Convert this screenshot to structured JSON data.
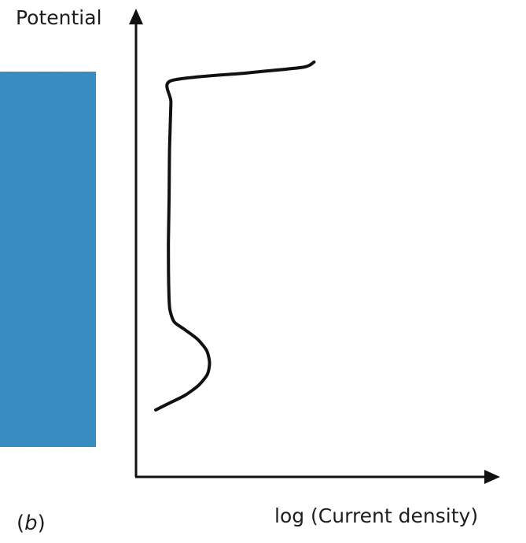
{
  "chart_data": {
    "type": "line",
    "title": "",
    "xlabel": "log (Current density)",
    "ylabel": "Potential",
    "grid": false,
    "legend": "none",
    "axis_ticks": "none",
    "colors": {
      "curve": "#111111",
      "axes": "#111111",
      "side_panel": "#3a90c4",
      "text": "#1e1e1e"
    },
    "xlim": [
      0,
      100
    ],
    "ylim": [
      0,
      100
    ],
    "series": [
      {
        "values": [
          [
            5.4,
            14.3
          ],
          [
            9.0,
            15.7
          ],
          [
            13.4,
            17.4
          ],
          [
            17.1,
            19.5
          ],
          [
            19.6,
            21.9
          ],
          [
            20.2,
            24.4
          ],
          [
            19.4,
            27.0
          ],
          [
            16.9,
            29.4
          ],
          [
            13.3,
            31.5
          ],
          [
            10.5,
            33.1
          ],
          [
            9.3,
            35.7
          ],
          [
            9.0,
            40.0
          ],
          [
            8.9,
            50.0
          ],
          [
            9.1,
            60.0
          ],
          [
            9.2,
            70.0
          ],
          [
            9.6,
            80.0
          ],
          [
            9.6,
            84.6
          ],
          [
            31.0,
            86.3
          ],
          [
            46.0,
            87.5
          ],
          [
            48.9,
            88.6
          ]
        ]
      }
    ]
  },
  "labels": {
    "panel_prefix": "(",
    "panel_letter": "b",
    "panel_suffix": ")"
  }
}
